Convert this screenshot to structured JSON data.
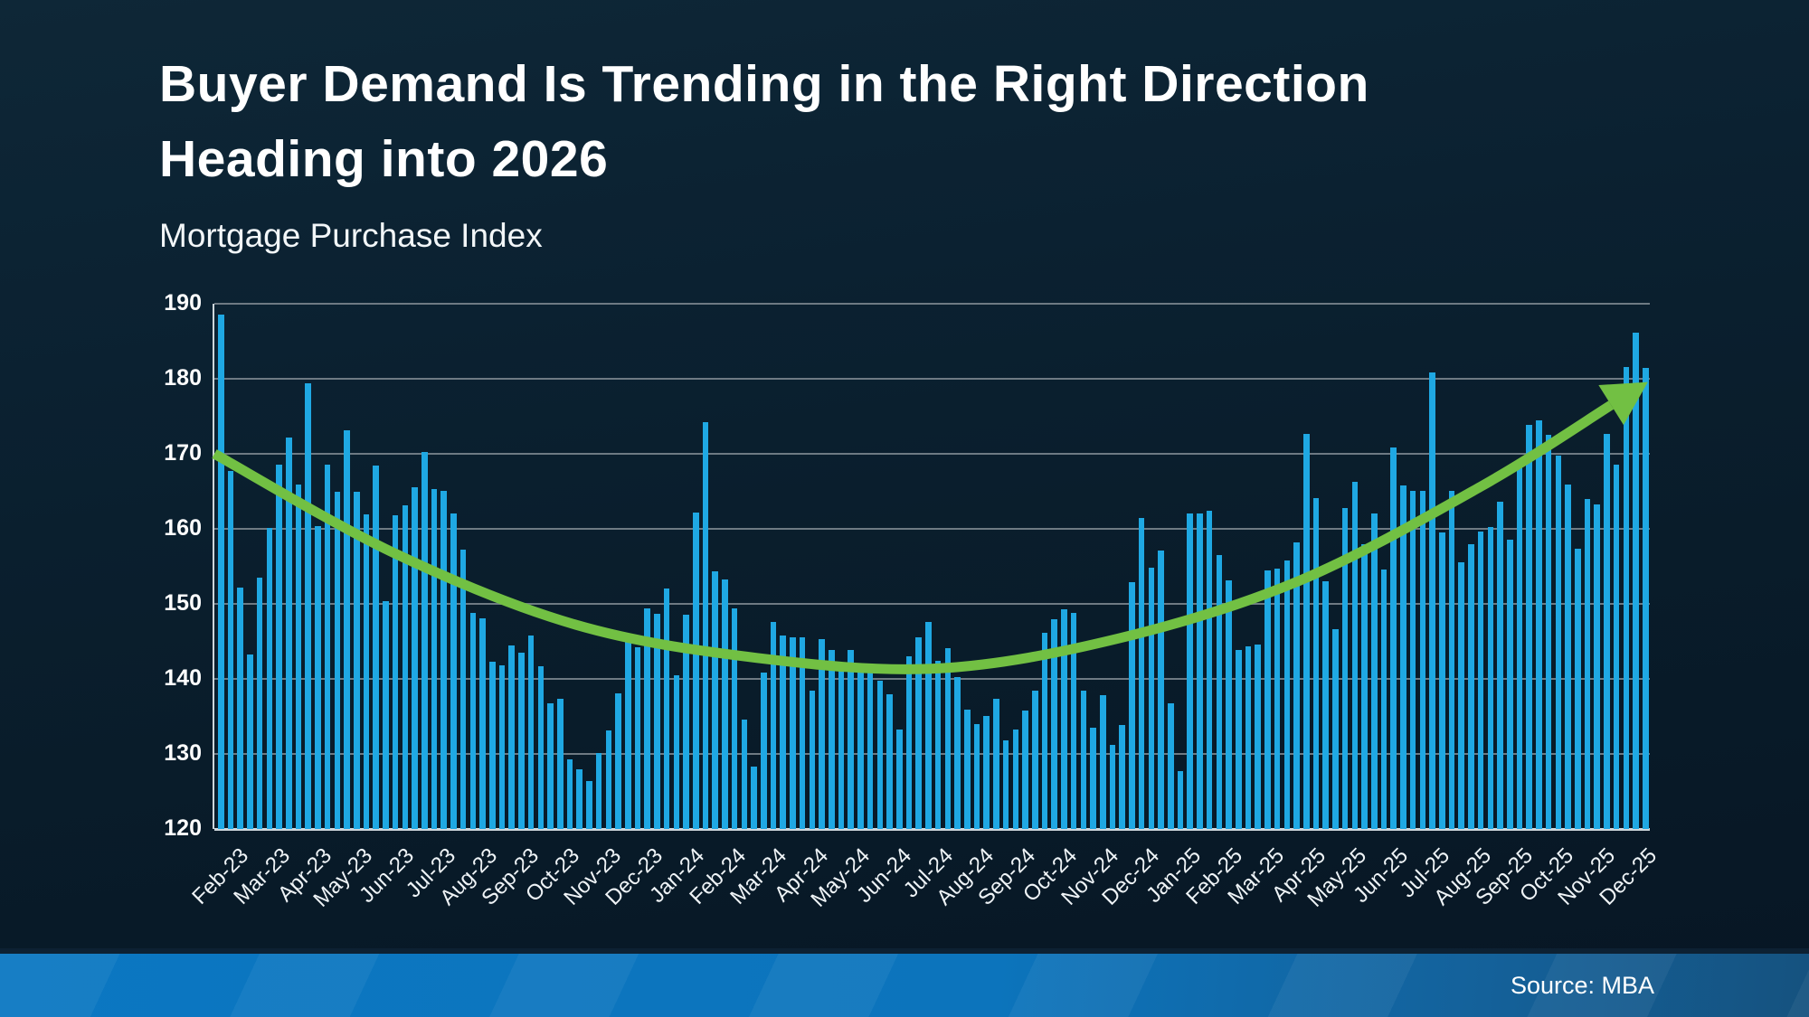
{
  "title": {
    "line1": "Buyer Demand Is Trending in the Right Direction",
    "line2": "Heading into 2026"
  },
  "subtitle": "Mortgage Purchase Index",
  "source": "Source: MBA",
  "colors": {
    "bar": "#1fa8e3",
    "trend_arrow": "#72c043",
    "gridline": "#6e7a83",
    "axis_line": "#cdd6db",
    "text": "#ffffff",
    "background_top": "#0e2737",
    "background_bottom": "#071624",
    "footer_left": "#0b77c2",
    "footer_right": "#15527f"
  },
  "chart_data": {
    "type": "bar",
    "title": "Buyer Demand Is Trending in the Right Direction Heading into 2026",
    "subtitle": "Mortgage Purchase Index",
    "xlabel": "",
    "ylabel": "",
    "ylim": [
      120,
      190
    ],
    "yticks": [
      190,
      180,
      170,
      160,
      150,
      140,
      130,
      120
    ],
    "grid": true,
    "legend": "none",
    "x_tick_labels": [
      "Feb-23",
      "Mar-23",
      "Apr-23",
      "May-23",
      "Jun-23",
      "Jul-23",
      "Aug-23",
      "Sep-23",
      "Oct-23",
      "Nov-23",
      "Dec-23",
      "Jan-24",
      "Feb-24",
      "Mar-24",
      "Apr-24",
      "May-24",
      "Jun-24",
      "Jul-24",
      "Aug-24",
      "Sep-24",
      "Oct-24",
      "Nov-24",
      "Dec-24",
      "Jan-25",
      "Feb-25",
      "Mar-25",
      "Apr-25",
      "May-25",
      "Jun-25",
      "Jul-25",
      "Aug-25",
      "Sep-25",
      "Oct-25",
      "Nov-25",
      "Dec-25"
    ],
    "series_name": "Weekly Mortgage Purchase Index",
    "values": [
      188.5,
      167.7,
      152.2,
      143.3,
      153.5,
      160.1,
      168.6,
      172.2,
      165.9,
      179.4,
      160.4,
      168.5,
      165,
      173.1,
      164.9,
      161.9,
      168.4,
      150.4,
      161.8,
      163.1,
      165.5,
      170.3,
      165.3,
      165.1,
      162.1,
      157.2,
      148.8,
      148.1,
      142.3,
      141.8,
      144.5,
      143.5,
      145.8,
      141.7,
      136.8,
      137.3,
      129.3,
      128,
      126.4,
      130.1,
      133.1,
      138.1,
      144.9,
      144.2,
      149.4,
      148.7,
      152,
      140.5,
      148.5,
      162.2,
      174.2,
      154.3,
      153.2,
      149.4,
      134.6,
      128.3,
      140.9,
      147.6,
      145.8,
      145.5,
      145.5,
      138.4,
      145.3,
      143.8,
      141.6,
      143.9,
      141,
      141,
      139.8,
      138,
      133.2,
      143,
      145.5,
      147.6,
      142.4,
      144.1,
      140.2,
      135.9,
      134,
      135.1,
      137.4,
      131.8,
      133.2,
      135.8,
      138.4,
      146.2,
      148,
      149.3,
      148.8,
      138.4,
      133.5,
      137.8,
      131.2,
      133.8,
      152.9,
      161.5,
      154.8,
      157.1,
      136.8,
      127.7,
      162,
      162.1,
      162.4,
      156.5,
      153.1,
      143.9,
      144.3,
      144.6,
      154.5,
      154.7,
      155.8,
      158.2,
      172.6,
      164.1,
      153,
      146.6,
      162.8,
      166.3,
      157.9,
      162.1,
      154.6,
      170.8,
      165.8,
      165.1,
      165.1,
      180.8,
      159.5,
      165.1,
      155.5,
      157.9,
      159.7,
      160.3,
      163.6,
      158.5,
      169.1,
      173.9,
      174.4,
      172.5,
      169.8,
      165.9,
      157.4,
      164,
      163.2,
      172.6,
      168.6,
      181.6,
      186.1,
      181.5
    ],
    "trend_line": {
      "shape": "u-curve with arrowhead",
      "points": [
        {
          "x": 0.0,
          "v": 170.0
        },
        {
          "x": 0.126,
          "v": 156.7
        },
        {
          "x": 0.252,
          "v": 147.2
        },
        {
          "x": 0.378,
          "v": 142.8
        },
        {
          "x": 0.504,
          "v": 141.4
        },
        {
          "x": 0.63,
          "v": 145.4
        },
        {
          "x": 0.756,
          "v": 153.1
        },
        {
          "x": 0.882,
          "v": 165.6
        },
        {
          "x": 0.973,
          "v": 176.5
        }
      ]
    }
  }
}
